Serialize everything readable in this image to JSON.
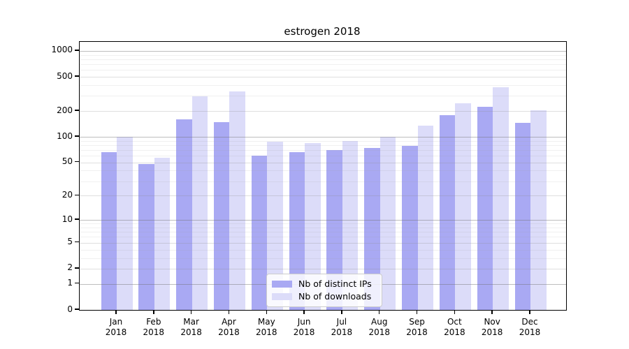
{
  "chart_data": {
    "type": "bar",
    "title": "estrogen 2018",
    "categories": [
      "Jan",
      "Feb",
      "Mar",
      "Apr",
      "May",
      "Jun",
      "Jul",
      "Aug",
      "Sep",
      "Oct",
      "Nov",
      "Dec"
    ],
    "year_label": "2018",
    "series": [
      {
        "name": "Nb of distinct IPs",
        "color": "#a9a9f3",
        "values": [
          66,
          48,
          160,
          149,
          60,
          66,
          70,
          74,
          79,
          180,
          226,
          145
        ]
      },
      {
        "name": "Nb of downloads",
        "color": "#dcdcf9",
        "values": [
          100,
          57,
          298,
          341,
          87,
          85,
          90,
          100,
          136,
          248,
          377,
          205
        ]
      }
    ],
    "y_ticks": [
      0,
      1,
      2,
      5,
      10,
      20,
      50,
      100,
      200,
      500,
      1000
    ],
    "y_scale": "log10(value+1)",
    "ylim": [
      0,
      1260
    ],
    "xlabel": "",
    "ylabel": "",
    "grid": true,
    "legend_position": "inside-bottom-center",
    "colors": {
      "axis": "#000000",
      "major_grid": "#b4b4b4",
      "mid_grid": "#d6d6d6",
      "minor_grid": "#e9e9e9",
      "background": "#ffffff"
    }
  }
}
